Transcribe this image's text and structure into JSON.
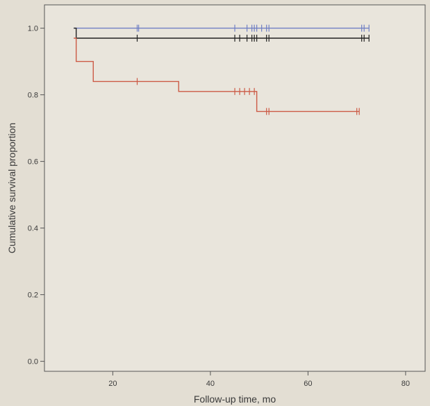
{
  "chart_data": {
    "type": "line",
    "step": true,
    "xlabel": "Follow-up time, mo",
    "ylabel": "Cumulative survival proportion",
    "xlim": [
      6,
      84
    ],
    "ylim": [
      -0.03,
      1.07
    ],
    "xticks": [
      20,
      40,
      60,
      80
    ],
    "yticks": [
      0.0,
      0.2,
      0.4,
      0.6,
      0.8,
      1.0
    ],
    "ytick_labels": [
      "0.0",
      "0.2",
      "0.4",
      "0.6",
      "0.8",
      "1.0"
    ],
    "grid": false,
    "series": [
      {
        "color": "#6f7fc4",
        "steps": [
          [
            12,
            1.0
          ],
          [
            72.5,
            1.0
          ]
        ],
        "censored": [
          25,
          25.3,
          45,
          47.5,
          48.5,
          49,
          49.5,
          50.5,
          51.5,
          52,
          71,
          71.5,
          72.5
        ]
      },
      {
        "color": "#222222",
        "steps": [
          [
            12,
            1.0
          ],
          [
            12.5,
            0.97
          ],
          [
            72.5,
            0.97
          ]
        ],
        "censored": [
          25,
          45,
          46,
          47.5,
          48.5,
          49,
          49.5,
          51.5,
          52,
          71,
          71.5,
          72.5
        ]
      },
      {
        "color": "#cc5a45",
        "steps": [
          [
            12,
            0.97
          ],
          [
            12.5,
            0.9
          ],
          [
            16,
            0.84
          ],
          [
            33.5,
            0.81
          ],
          [
            49.5,
            0.75
          ],
          [
            70.5,
            0.75
          ]
        ],
        "censored": [
          25,
          45,
          46,
          47,
          48,
          49,
          51.5,
          52,
          70,
          70.5
        ]
      }
    ]
  }
}
